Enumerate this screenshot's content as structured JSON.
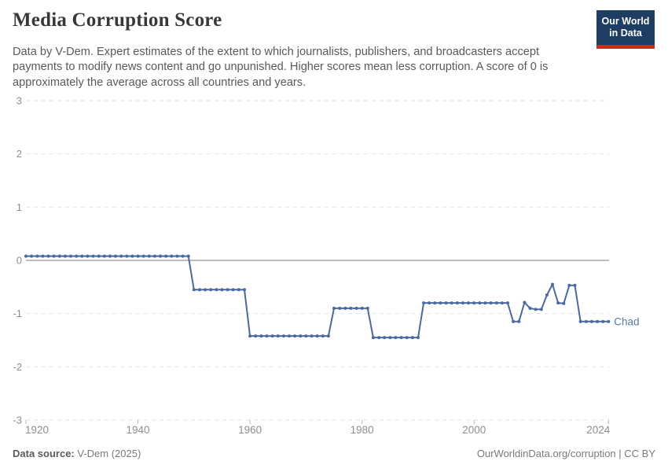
{
  "header": {
    "title": "Media Corruption Score",
    "subtitle": "Data by V-Dem. Expert estimates of the extent to which journalists, publishers, and broadcasters accept payments to modify news content and go unpunished. Higher scores mean less corruption. A score of 0 is approximately the average across all countries and years.",
    "logo": {
      "line1": "Our World",
      "line2": "in Data"
    }
  },
  "chart_data": {
    "type": "line",
    "title": "Media Corruption Score",
    "entity": "Chad",
    "legend_position": "end-of-line-label",
    "grid": "horizontal-dashed",
    "ylim": [
      -3,
      3
    ],
    "xlim": [
      1920,
      2024
    ],
    "yticks": [
      3,
      2,
      1,
      0,
      -1,
      -2,
      -3
    ],
    "xticks": [
      1920,
      1940,
      1960,
      1980,
      2000,
      2024
    ],
    "year_start": 1920,
    "year_end": 2024,
    "series": [
      {
        "name": "Chad",
        "values": [
          0.08,
          0.08,
          0.08,
          0.08,
          0.08,
          0.08,
          0.08,
          0.08,
          0.08,
          0.08,
          0.08,
          0.08,
          0.08,
          0.08,
          0.08,
          0.08,
          0.08,
          0.08,
          0.08,
          0.08,
          0.08,
          0.08,
          0.08,
          0.08,
          0.08,
          0.08,
          0.08,
          0.08,
          0.08,
          0.08,
          -0.55,
          -0.55,
          -0.55,
          -0.55,
          -0.55,
          -0.55,
          -0.55,
          -0.55,
          -0.55,
          -0.55,
          -1.42,
          -1.42,
          -1.42,
          -1.42,
          -1.42,
          -1.42,
          -1.42,
          -1.42,
          -1.42,
          -1.42,
          -1.42,
          -1.42,
          -1.42,
          -1.42,
          -1.42,
          -0.9,
          -0.9,
          -0.9,
          -0.9,
          -0.9,
          -0.9,
          -0.9,
          -1.45,
          -1.45,
          -1.45,
          -1.45,
          -1.45,
          -1.45,
          -1.45,
          -1.45,
          -1.45,
          -0.8,
          -0.8,
          -0.8,
          -0.8,
          -0.8,
          -0.8,
          -0.8,
          -0.8,
          -0.8,
          -0.8,
          -0.8,
          -0.8,
          -0.8,
          -0.8,
          -0.8,
          -0.8,
          -1.15,
          -1.15,
          -0.79,
          -0.9,
          -0.92,
          -0.92,
          -0.65,
          -0.45,
          -0.8,
          -0.81,
          -0.47,
          -0.47,
          -1.15,
          -1.15,
          -1.15,
          -1.15,
          -1.15,
          -1.15
        ]
      }
    ],
    "colors": {
      "line": "#4a69a2",
      "entity_label": "#5578ae",
      "gridline": "#e2e2e2",
      "zero_line": "#a5a5a5",
      "tick": "#b5b5b5",
      "axis_label": "#8f8f8f"
    }
  },
  "footer": {
    "data_source_label": "Data source:",
    "data_source_value": " V-Dem (2025)",
    "attribution": "OurWorldinData.org/corruption | CC BY"
  },
  "brand": {
    "navy": "#1d3d63",
    "red": "#d02a20"
  }
}
